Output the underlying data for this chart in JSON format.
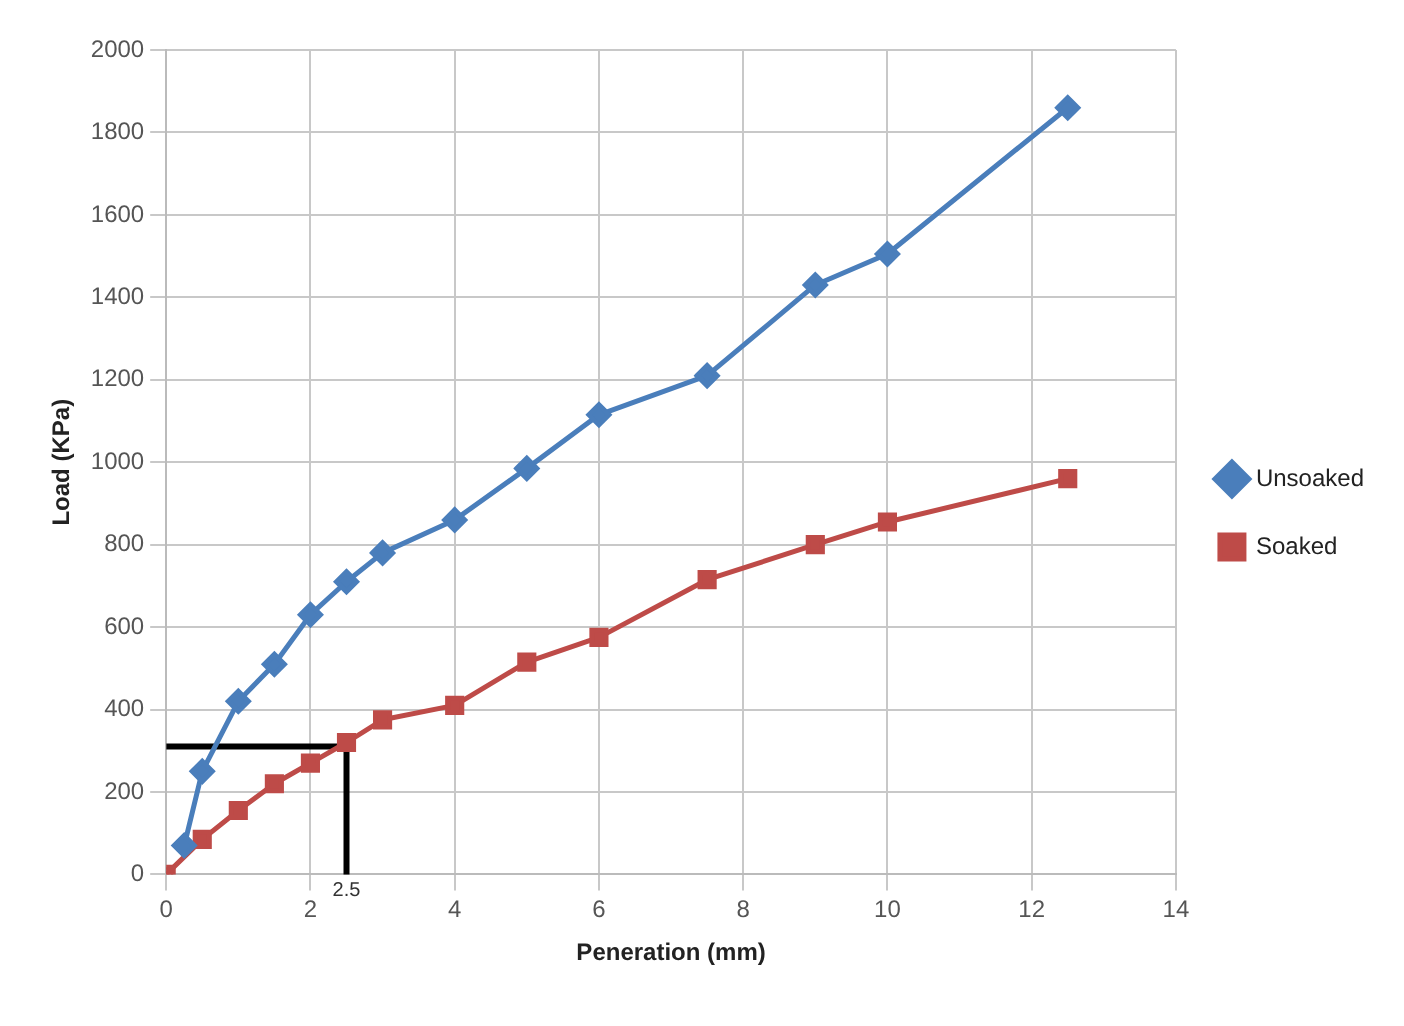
{
  "chart_data": {
    "type": "line",
    "xlabel": "Peneration (mm)",
    "ylabel": "Load (KPa)",
    "xlim": [
      0,
      14
    ],
    "xticks": [
      0,
      2,
      4,
      6,
      8,
      10,
      12,
      14
    ],
    "ylim": [
      0,
      2000
    ],
    "yticks": [
      0,
      200,
      400,
      600,
      800,
      1000,
      1200,
      1400,
      1600,
      1800,
      2000
    ],
    "grid": true,
    "legend": "right",
    "series": [
      {
        "name": "Unsoaked",
        "color": "#4a7ebb",
        "marker": "diamond",
        "x": [
          0.25,
          0.5,
          1,
          1.5,
          2,
          2.5,
          3,
          4,
          5,
          6,
          7.5,
          9,
          10,
          12.5
        ],
        "values": [
          70,
          250,
          420,
          510,
          630,
          710,
          780,
          860,
          985,
          1115,
          1210,
          1430,
          1505,
          1860
        ]
      },
      {
        "name": "Soaked",
        "color": "#be4b48",
        "marker": "square",
        "x": [
          0,
          0.5,
          1,
          1.5,
          2,
          2.5,
          3,
          4,
          5,
          6,
          7.5,
          9,
          10,
          12.5
        ],
        "values": [
          0,
          85,
          155,
          220,
          270,
          320,
          375,
          410,
          515,
          575,
          715,
          800,
          855,
          960
        ]
      },
      {
        "color": "#000000",
        "marker": "none",
        "x": [
          0,
          2.5,
          2.5
        ],
        "values": [
          310,
          310,
          0
        ]
      }
    ],
    "annotations": [
      {
        "text": "2.5",
        "x": 2.5,
        "y": 0
      }
    ]
  }
}
